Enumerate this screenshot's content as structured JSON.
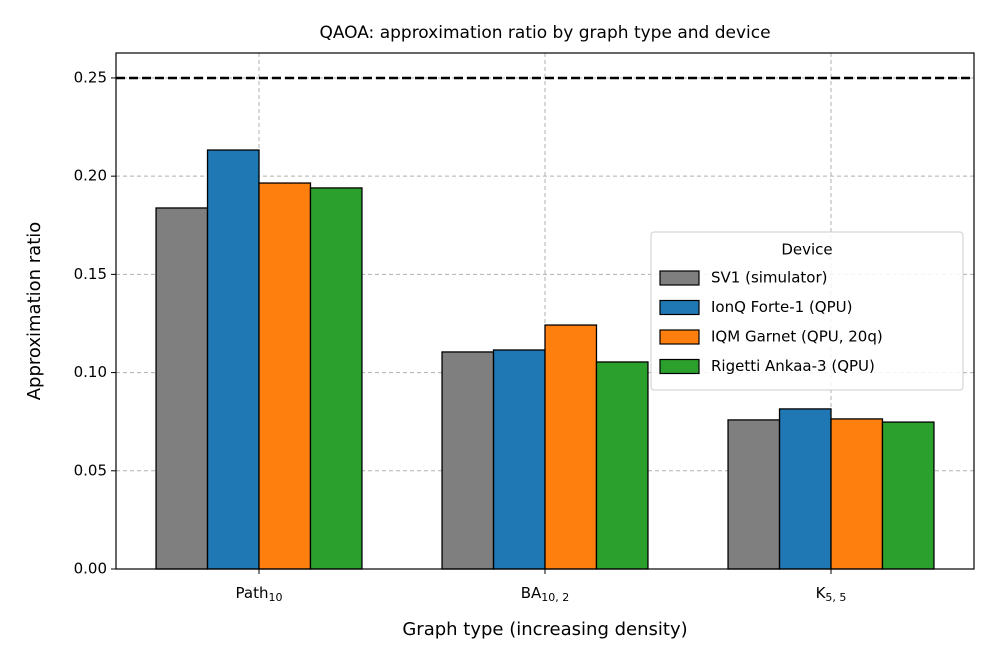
{
  "chart_data": {
    "type": "bar",
    "title": "QAOA: approximation ratio by graph type and device",
    "x_label": "Graph type (increasing density)",
    "y_label": "Approximation ratio",
    "categories": [
      [
        "Path",
        "10"
      ],
      [
        "BA",
        "10, 2"
      ],
      [
        "K",
        "5, 5"
      ]
    ],
    "series": [
      {
        "name": "SV1 (simulator)",
        "color": "#7f7f7f",
        "values": [
          0.1838,
          0.1105,
          0.0759
        ]
      },
      {
        "name": "IonQ Forte-1 (QPU)",
        "color": "#1f77b4",
        "values": [
          0.2133,
          0.1115,
          0.0815
        ]
      },
      {
        "name": "IQM Garnet (QPU, 20q)",
        "color": "#ff7f0e",
        "values": [
          0.1965,
          0.1242,
          0.0764
        ]
      },
      {
        "name": "Rigetti Ankaa-3 (QPU)",
        "color": "#2ca02c",
        "values": [
          0.194,
          0.1054,
          0.0748
        ]
      }
    ],
    "legend_title": "Device",
    "legend_position": "center right",
    "reference_line": 0.25,
    "ylim": [
      0,
      0.2627
    ],
    "yticks": [
      {
        "value": 0,
        "label": "0.00"
      },
      {
        "value": 0.05,
        "label": "0.05"
      },
      {
        "value": 0.1,
        "label": "0.10"
      },
      {
        "value": 0.15,
        "label": "0.15"
      },
      {
        "value": 0.2,
        "label": "0.20"
      },
      {
        "value": 0.25,
        "label": "0.25"
      }
    ],
    "grid": true
  }
}
